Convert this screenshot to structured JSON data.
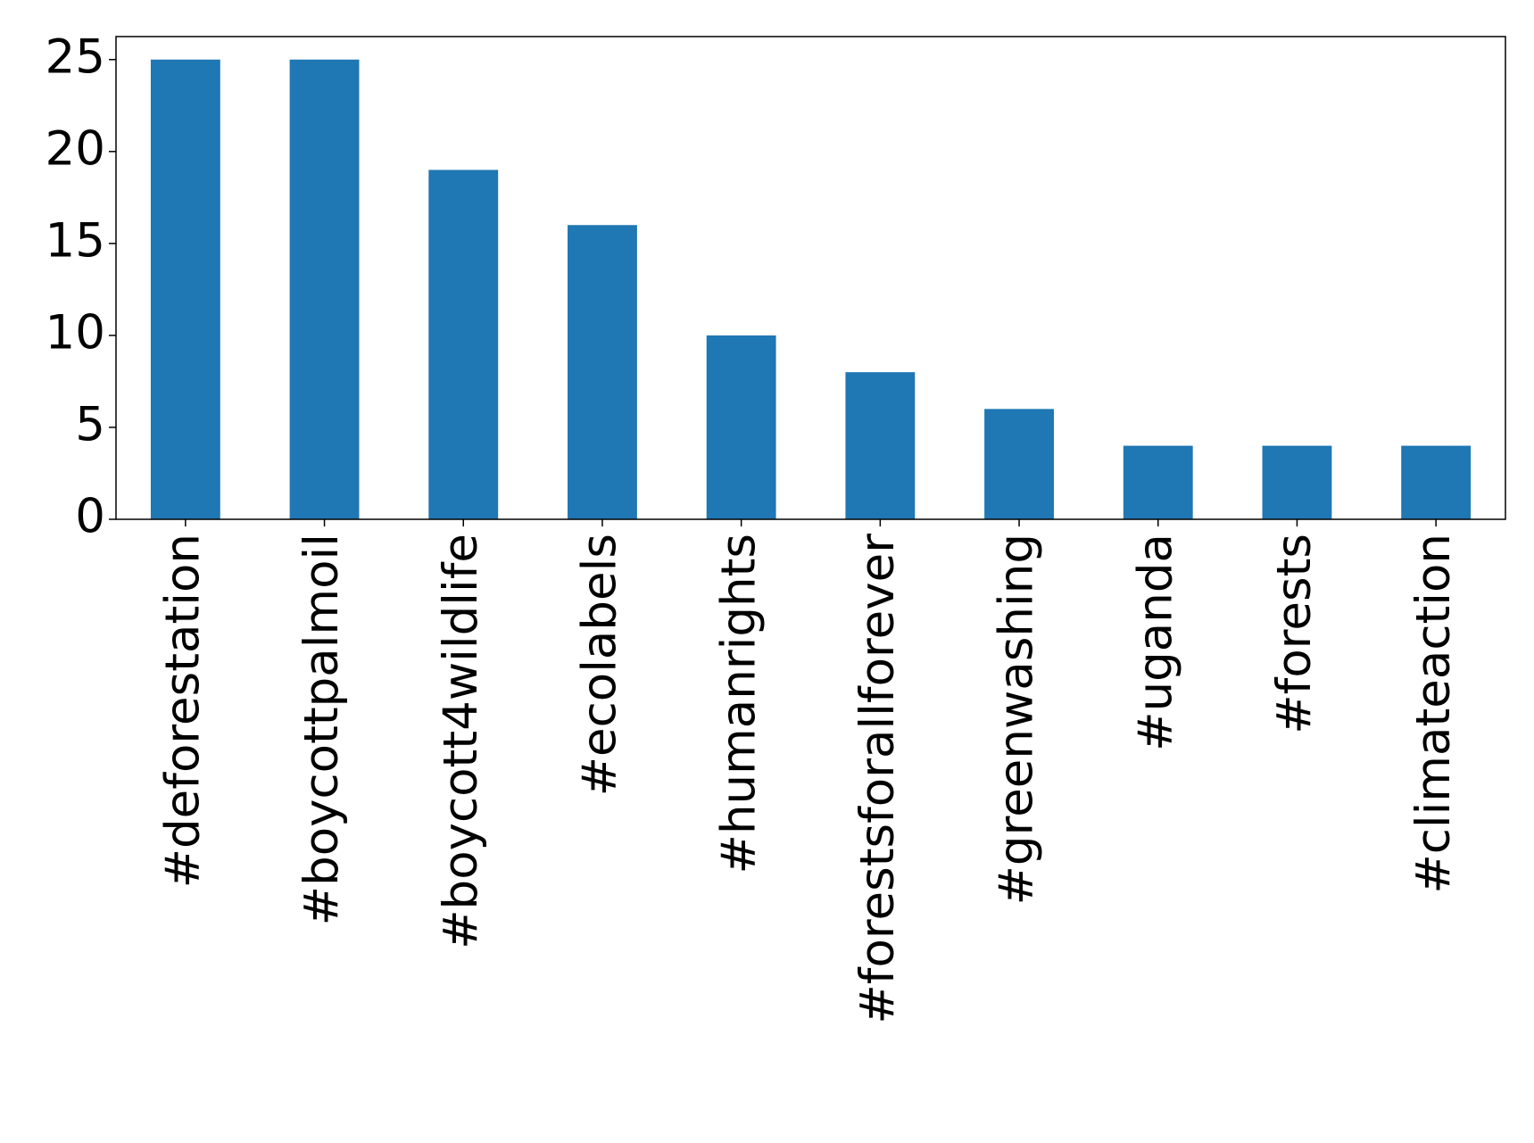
{
  "chart_data": {
    "type": "bar",
    "categories": [
      "#deforestation",
      "#boycottpalmoil",
      "#boycott4wildlife",
      "#ecolabels",
      "#humanrights",
      "#forestsforallforever",
      "#greenwashing",
      "#uganda",
      "#forests",
      "#climateaction"
    ],
    "values": [
      25,
      25,
      19,
      16,
      10,
      8,
      6,
      4,
      4,
      4
    ],
    "color": "#1f77b4",
    "ylim": [
      0,
      26.25
    ],
    "yticks": [
      0,
      5,
      10,
      15,
      20,
      25
    ],
    "grid": false
  }
}
